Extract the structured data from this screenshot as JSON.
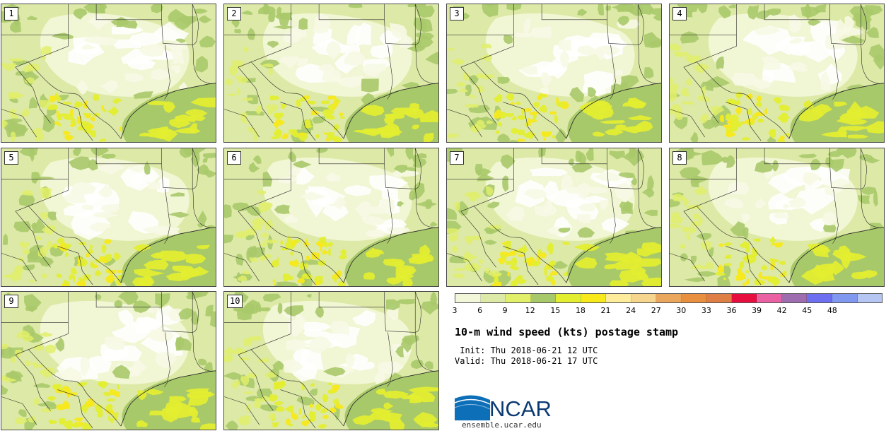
{
  "panels": [
    {
      "label": "1"
    },
    {
      "label": "2"
    },
    {
      "label": "3"
    },
    {
      "label": "4"
    },
    {
      "label": "5"
    },
    {
      "label": "6"
    },
    {
      "label": "7"
    },
    {
      "label": "8"
    },
    {
      "label": "9"
    },
    {
      "label": "10"
    }
  ],
  "colorbar": {
    "colors": [
      "#f3f7d9",
      "#dde9a6",
      "#e1ef6a",
      "#a8c96a",
      "#e3ee30",
      "#f7e91a",
      "#fcec9c",
      "#f6d58e",
      "#eba65e",
      "#e8903f",
      "#df7e45",
      "#e80d3f",
      "#e960a3",
      "#9d6db0",
      "#6d6ef0",
      "#8198f0",
      "#b5c6f2"
    ],
    "tick_labels": [
      "3",
      "6",
      "9",
      "12",
      "15",
      "18",
      "21",
      "24",
      "27",
      "30",
      "33",
      "36",
      "39",
      "42",
      "45",
      "48"
    ]
  },
  "title": "10-m wind speed (kts) postage stamp",
  "init_line": " Init: Thu 2018-06-21 12 UTC",
  "valid_line": "Valid: Thu 2018-06-21 17 UTC",
  "logo_text": "NCAR",
  "site_url": "ensemble.ucar.edu"
}
